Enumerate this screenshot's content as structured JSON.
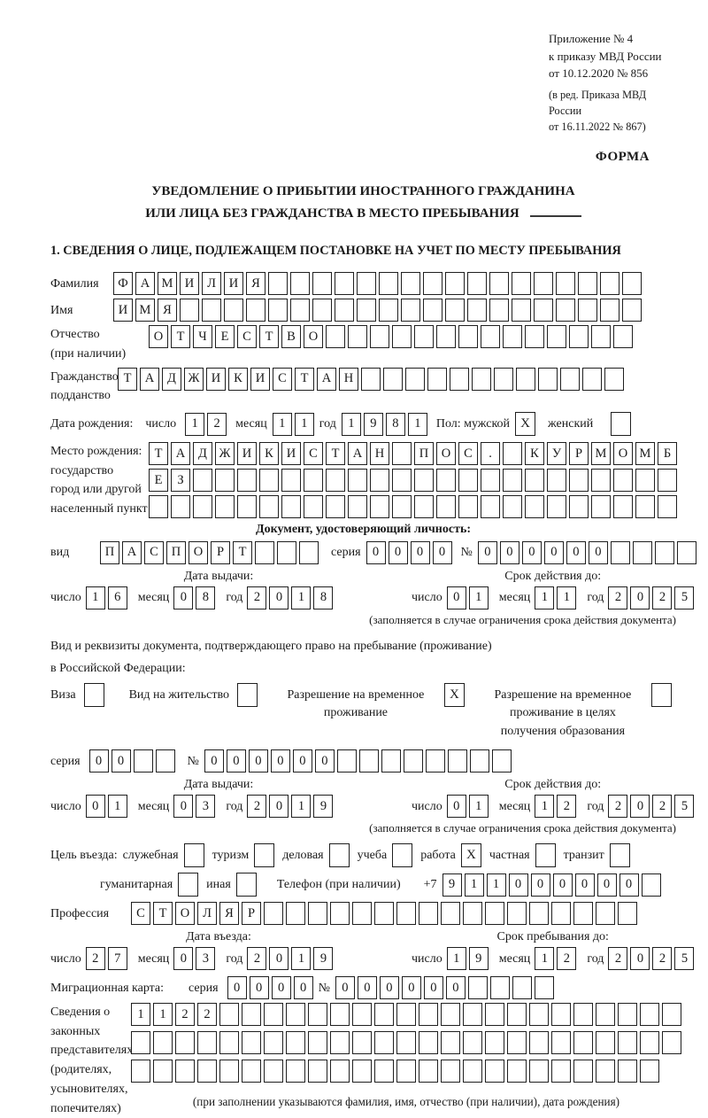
{
  "header": {
    "appendix": [
      "Приложение № 4",
      "к приказу МВД России",
      "от 10.12.2020 № 856"
    ],
    "edition": [
      "(в ред. Приказа МВД России",
      "от 16.11.2022 № 867)"
    ],
    "forma": "ФОРМА"
  },
  "title": {
    "line1": "УВЕДОМЛЕНИЕ О ПРИБЫТИИ ИНОСТРАННОГО ГРАЖДАНИНА",
    "line2": "ИЛИ ЛИЦА БЕЗ ГРАЖДАНСТВА В МЕСТО ПРЕБЫВАНИЯ"
  },
  "section1_heading": "1. СВЕДЕНИЯ О ЛИЦЕ, ПОДЛЕЖАЩЕМ ПОСТАНОВКЕ НА УЧЕТ ПО МЕСТУ ПРЕБЫВАНИЯ",
  "date_labels": {
    "day": "число",
    "month": "месяц",
    "year": "год"
  },
  "person": {
    "surname": {
      "label": "Фамилия",
      "chars": "ФАМИЛИЯ",
      "count": 24
    },
    "name": {
      "label": "Имя",
      "chars": "ИМЯ",
      "count": 24
    },
    "patronymic": {
      "label1": "Отчество",
      "label2": "(при наличии)",
      "chars": "ОТЧЕСТВО",
      "count": 22
    },
    "citizenship": {
      "label1": "Гражданство,",
      "label2": "подданство",
      "chars": "ТАДЖИКИСТАН",
      "count": 23
    },
    "birth_date": {
      "label": "Дата рождения:",
      "day": {
        "chars": "12",
        "count": 2
      },
      "month": {
        "chars": "11",
        "count": 2
      },
      "year": {
        "chars": "1981",
        "count": 4
      },
      "sex_label": "Пол: мужской",
      "male_mark": "X",
      "female_label": "женский",
      "female_mark": ""
    },
    "birth_place": {
      "labels": [
        "Место рождения:",
        "государство",
        "город или другой",
        "населенный пункт"
      ],
      "row1": {
        "chars": "ТАДЖИКИСТАН ПОС. КУРМОМБ",
        "count": 24
      },
      "row2": {
        "chars": "ЕЗ",
        "count": 24
      },
      "row3": {
        "chars": "",
        "count": 24
      }
    }
  },
  "identity": {
    "heading": "Документ, удостоверяющий личность:",
    "kind_label": "вид",
    "kind": {
      "chars": "ПАСПОРТ",
      "count": 10
    },
    "series_label": "серия",
    "series": {
      "chars": "0000",
      "count": 4
    },
    "number_label": "№",
    "number": {
      "chars": "000000",
      "count": 10
    },
    "issue_heading": "Дата выдачи:",
    "issue": {
      "day": {
        "chars": "16",
        "count": 2
      },
      "month": {
        "chars": "08",
        "count": 2
      },
      "year": {
        "chars": "2018",
        "count": 4
      }
    },
    "valid_heading": "Срок действия до:",
    "valid": {
      "day": {
        "chars": "01",
        "count": 2
      },
      "month": {
        "chars": "11",
        "count": 2
      },
      "year": {
        "chars": "2025",
        "count": 4
      }
    },
    "note": "(заполняется в случае ограничения срока действия документа)"
  },
  "permit": {
    "intro1": "Вид и реквизиты документа, подтверждающего право на пребывание (проживание)",
    "intro2": "в Российской Федерации:",
    "options": [
      {
        "label": "Виза",
        "mark": ""
      },
      {
        "label": "Вид на жительство",
        "mark": ""
      },
      {
        "label": "Разрешение на временное проживание",
        "mark": "X"
      },
      {
        "label": "Разрешение на временное проживание в целях получения образования",
        "mark": ""
      }
    ],
    "series_label": "серия",
    "series": {
      "chars": "00",
      "count": 4
    },
    "number_label": "№",
    "number": {
      "chars": "000000",
      "count": 14
    },
    "issue_heading": "Дата выдачи:",
    "issue": {
      "day": {
        "chars": "01",
        "count": 2
      },
      "month": {
        "chars": "03",
        "count": 2
      },
      "year": {
        "chars": "2019",
        "count": 4
      }
    },
    "valid_heading": "Срок действия до:",
    "valid": {
      "day": {
        "chars": "01",
        "count": 2
      },
      "month": {
        "chars": "12",
        "count": 2
      },
      "year": {
        "chars": "2025",
        "count": 4
      }
    },
    "note": "(заполняется в случае ограничения срока действия документа)"
  },
  "purpose": {
    "label": "Цель въезда:",
    "row1": [
      {
        "label": "служебная",
        "mark": ""
      },
      {
        "label": "туризм",
        "mark": ""
      },
      {
        "label": "деловая",
        "mark": ""
      },
      {
        "label": "учеба",
        "mark": ""
      },
      {
        "label": "работа",
        "mark": "X"
      },
      {
        "label": "частная",
        "mark": ""
      },
      {
        "label": "транзит",
        "mark": ""
      }
    ],
    "row2": [
      {
        "label": "гуманитарная",
        "mark": ""
      },
      {
        "label": "иная",
        "mark": ""
      }
    ],
    "phone_label": "Телефон (при наличии)",
    "phone_prefix": "+7",
    "phone": {
      "chars": "911000000",
      "count": 10
    }
  },
  "profession": {
    "label": "Профессия",
    "chars": "СТОЛЯР",
    "count": 23
  },
  "entry": {
    "entry_heading": "Дата въезда:",
    "entry": {
      "day": {
        "chars": "27",
        "count": 2
      },
      "month": {
        "chars": "03",
        "count": 2
      },
      "year": {
        "chars": "2019",
        "count": 4
      }
    },
    "stay_heading": "Срок пребывания до:",
    "stay": {
      "day": {
        "chars": "19",
        "count": 2
      },
      "month": {
        "chars": "12",
        "count": 2
      },
      "year": {
        "chars": "2025",
        "count": 4
      }
    }
  },
  "migration": {
    "label": "Миграционная карта:",
    "series_label": "серия",
    "series": {
      "chars": "0000",
      "count": 4
    },
    "number_label": "№",
    "number": {
      "chars": "000000",
      "count": 10
    }
  },
  "representatives": {
    "labels": [
      "Сведения о",
      "законных",
      "представителях",
      "(родителях,",
      "усыновителях,",
      "попечителях)"
    ],
    "row1": {
      "chars": "1122",
      "count": 25
    },
    "row2": {
      "chars": "",
      "count": 25
    },
    "row3": {
      "chars": "",
      "count": 24
    },
    "note": "(при заполнении указываются фамилия, имя, отчество (при наличии), дата рождения)"
  }
}
